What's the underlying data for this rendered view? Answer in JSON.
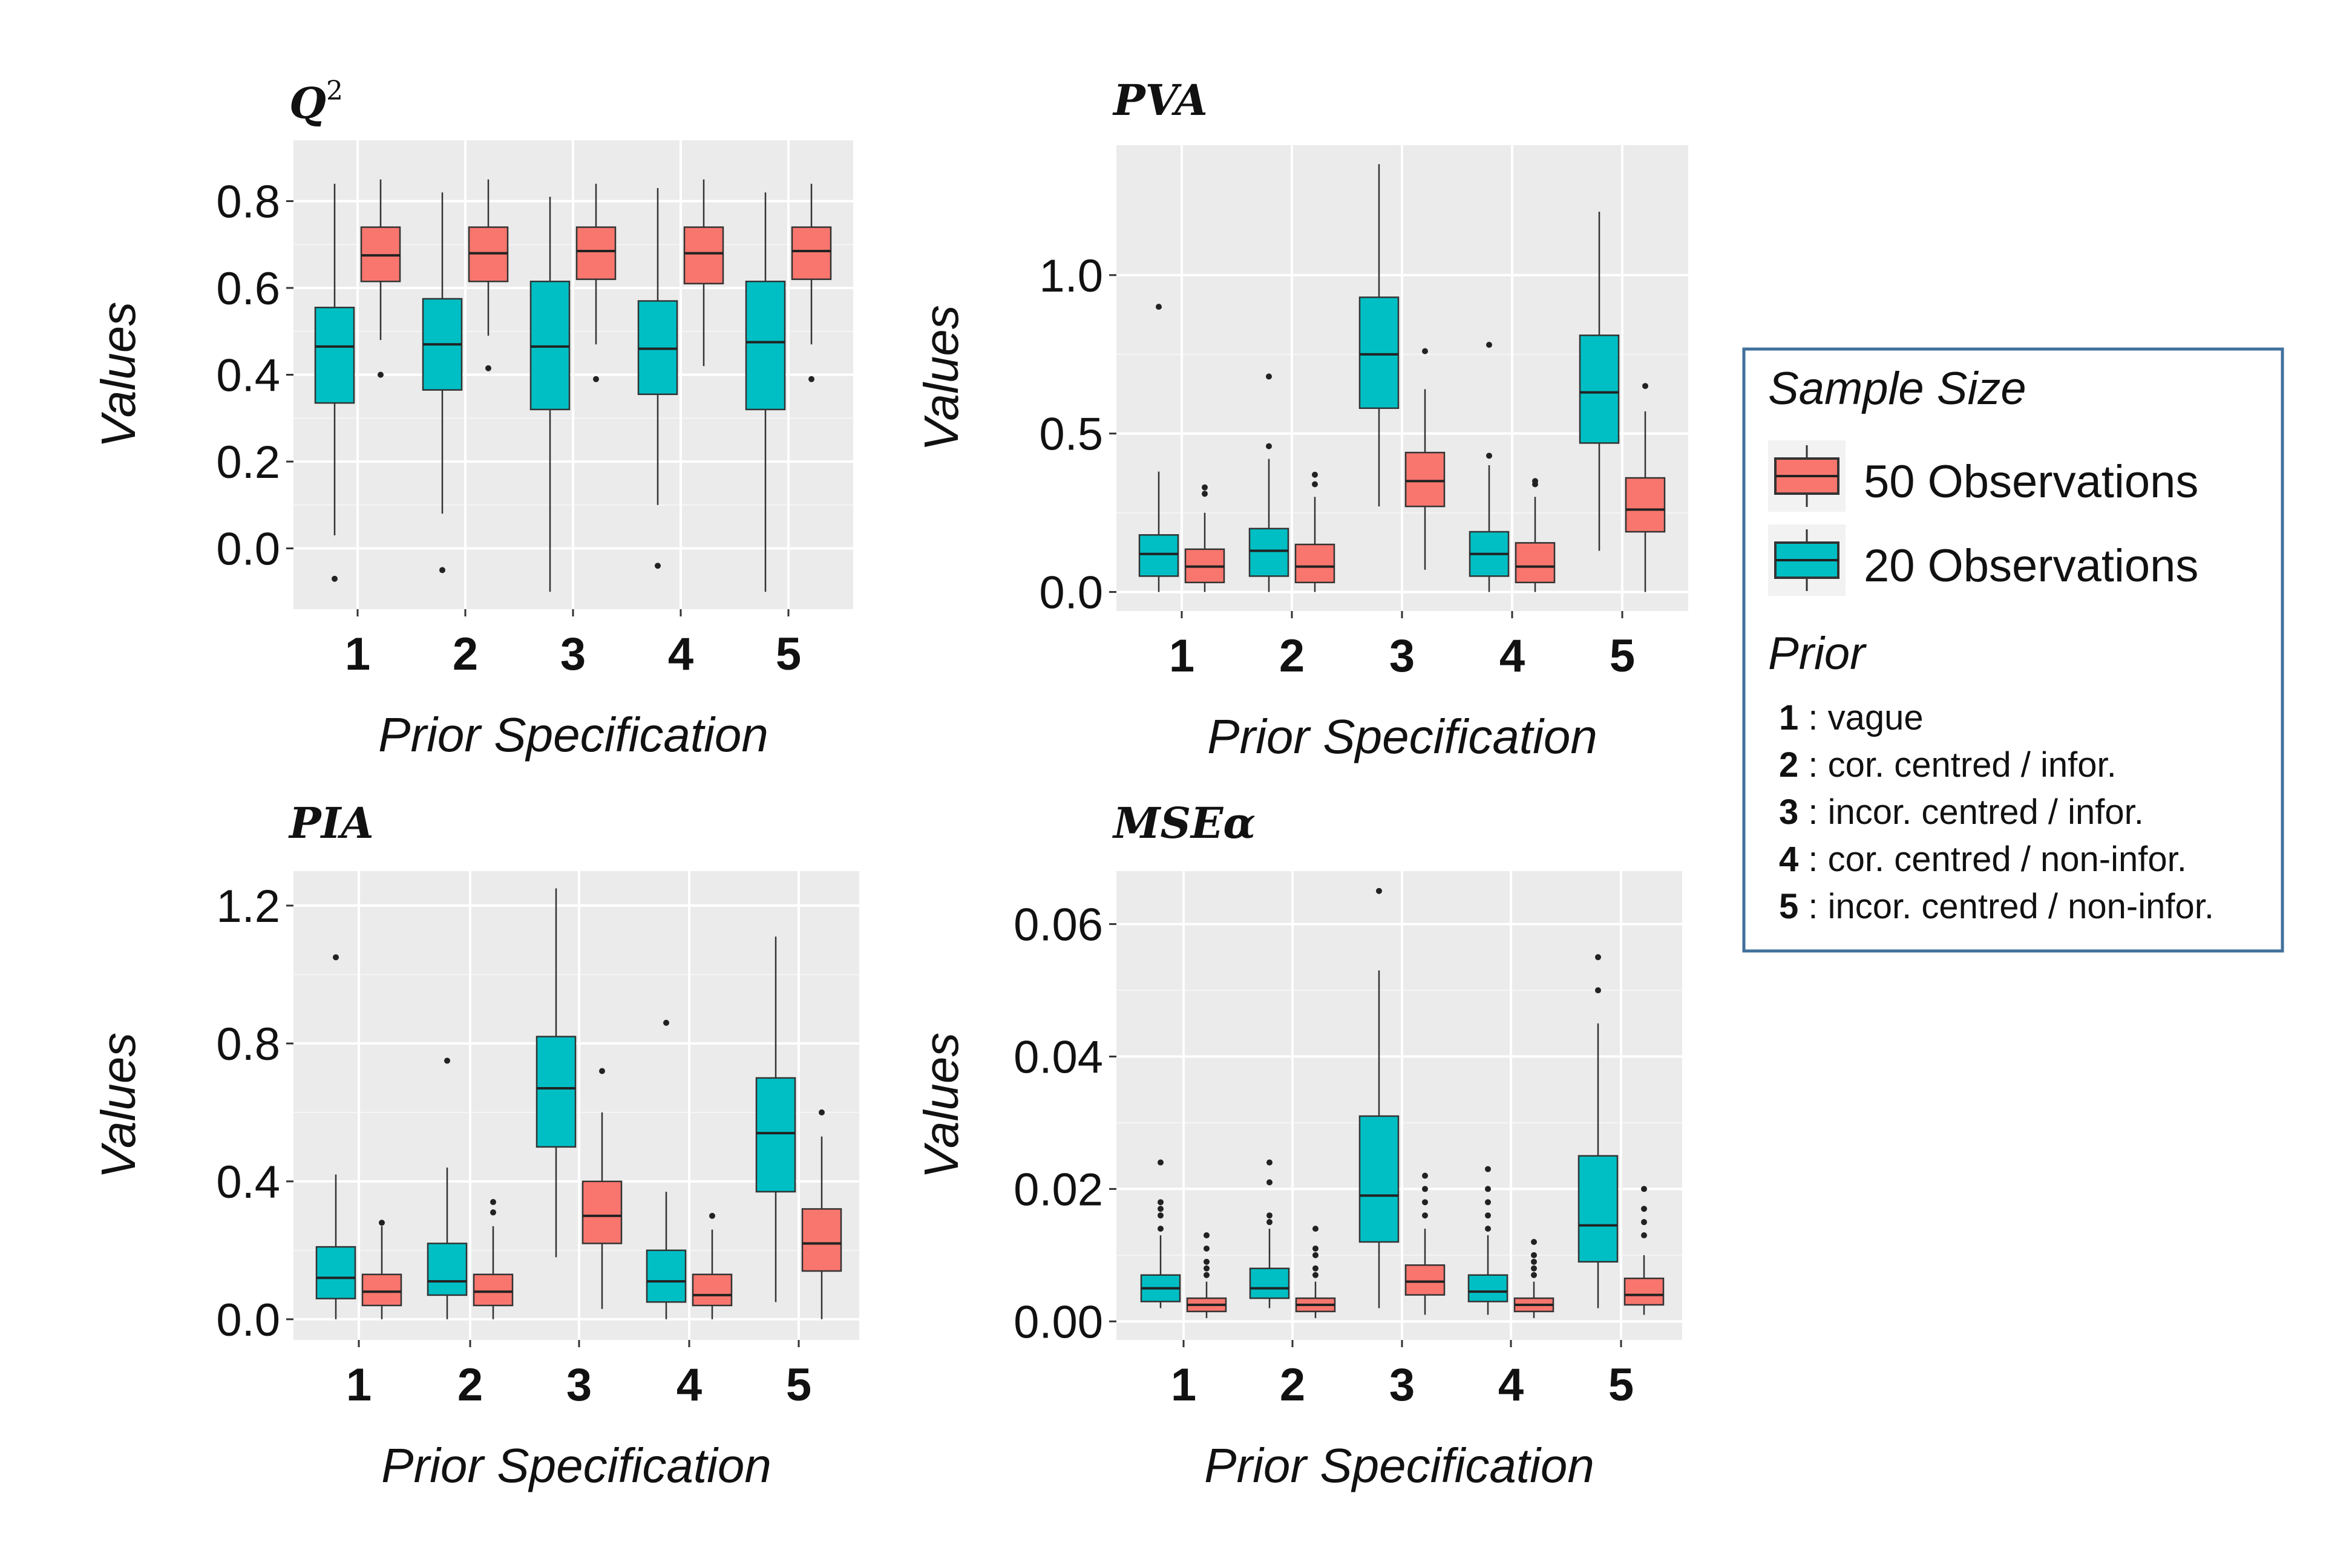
{
  "chart_data": [
    {
      "type": "box",
      "title": "Q",
      "title_superscript": "2",
      "xlabel": "Prior Specification",
      "ylabel": "Values",
      "categories": [
        "1",
        "2",
        "3",
        "4",
        "5"
      ],
      "ylim": [
        -0.14,
        0.94
      ],
      "yticks": [
        0.0,
        0.2,
        0.4,
        0.6,
        0.8
      ],
      "ytick_labels": [
        "0.0",
        "0.2",
        "0.4",
        "0.6",
        "0.8"
      ],
      "series": [
        {
          "name": "20 Observations",
          "boxes": [
            {
              "min": 0.03,
              "q1": 0.335,
              "median": 0.465,
              "q3": 0.555,
              "max": 0.84,
              "outliers": [
                -0.07
              ]
            },
            {
              "min": 0.08,
              "q1": 0.365,
              "median": 0.47,
              "q3": 0.575,
              "max": 0.82,
              "outliers": [
                -0.05
              ]
            },
            {
              "min": -0.1,
              "q1": 0.32,
              "median": 0.465,
              "q3": 0.615,
              "max": 0.81,
              "outliers": []
            },
            {
              "min": 0.1,
              "q1": 0.355,
              "median": 0.46,
              "q3": 0.57,
              "max": 0.83,
              "outliers": [
                -0.04
              ]
            },
            {
              "min": -0.1,
              "q1": 0.32,
              "median": 0.475,
              "q3": 0.615,
              "max": 0.82,
              "outliers": []
            }
          ]
        },
        {
          "name": "50 Observations",
          "boxes": [
            {
              "min": 0.48,
              "q1": 0.615,
              "median": 0.675,
              "q3": 0.74,
              "max": 0.85,
              "outliers": [
                0.4
              ]
            },
            {
              "min": 0.49,
              "q1": 0.615,
              "median": 0.68,
              "q3": 0.74,
              "max": 0.85,
              "outliers": [
                0.415
              ]
            },
            {
              "min": 0.47,
              "q1": 0.62,
              "median": 0.685,
              "q3": 0.74,
              "max": 0.84,
              "outliers": [
                0.39
              ]
            },
            {
              "min": 0.42,
              "q1": 0.61,
              "median": 0.68,
              "q3": 0.74,
              "max": 0.85,
              "outliers": []
            },
            {
              "min": 0.47,
              "q1": 0.62,
              "median": 0.685,
              "q3": 0.74,
              "max": 0.84,
              "outliers": [
                0.39
              ]
            }
          ]
        }
      ]
    },
    {
      "type": "box",
      "title": "PVA",
      "xlabel": "Prior Specification",
      "ylabel": "Values",
      "categories": [
        "1",
        "2",
        "3",
        "4",
        "5"
      ],
      "ylim": [
        -0.06,
        1.41
      ],
      "yticks": [
        0.0,
        0.5,
        1.0
      ],
      "ytick_labels": [
        "0.0",
        "0.5",
        "1.0"
      ],
      "series": [
        {
          "name": "20 Observations",
          "boxes": [
            {
              "min": 0.0,
              "q1": 0.05,
              "median": 0.12,
              "q3": 0.18,
              "max": 0.38,
              "outliers": [
                0.9
              ]
            },
            {
              "min": 0.0,
              "q1": 0.05,
              "median": 0.13,
              "q3": 0.2,
              "max": 0.42,
              "outliers": [
                0.46,
                0.68
              ]
            },
            {
              "min": 0.27,
              "q1": 0.58,
              "median": 0.75,
              "q3": 0.93,
              "max": 1.35,
              "outliers": []
            },
            {
              "min": 0.0,
              "q1": 0.05,
              "median": 0.12,
              "q3": 0.19,
              "max": 0.4,
              "outliers": [
                0.43,
                0.78
              ]
            },
            {
              "min": 0.13,
              "q1": 0.47,
              "median": 0.63,
              "q3": 0.81,
              "max": 1.2,
              "outliers": []
            }
          ]
        },
        {
          "name": "50 Observations",
          "boxes": [
            {
              "min": 0.0,
              "q1": 0.03,
              "median": 0.08,
              "q3": 0.135,
              "max": 0.25,
              "outliers": [
                0.31,
                0.33
              ]
            },
            {
              "min": 0.0,
              "q1": 0.03,
              "median": 0.08,
              "q3": 0.15,
              "max": 0.3,
              "outliers": [
                0.34,
                0.37
              ]
            },
            {
              "min": 0.07,
              "q1": 0.27,
              "median": 0.35,
              "q3": 0.44,
              "max": 0.64,
              "outliers": [
                0.76
              ]
            },
            {
              "min": 0.0,
              "q1": 0.03,
              "median": 0.08,
              "q3": 0.155,
              "max": 0.3,
              "outliers": [
                0.34,
                0.35
              ]
            },
            {
              "min": 0.0,
              "q1": 0.19,
              "median": 0.26,
              "q3": 0.36,
              "max": 0.57,
              "outliers": [
                0.65
              ]
            }
          ]
        }
      ]
    },
    {
      "type": "box",
      "title": "PIA",
      "xlabel": "Prior Specification",
      "ylabel": "Values",
      "categories": [
        "1",
        "2",
        "3",
        "4",
        "5"
      ],
      "ylim": [
        -0.06,
        1.3
      ],
      "yticks": [
        0.0,
        0.4,
        0.8,
        1.2
      ],
      "ytick_labels": [
        "0.0",
        "0.4",
        "0.8",
        "1.2"
      ],
      "series": [
        {
          "name": "20 Observations",
          "boxes": [
            {
              "min": 0.0,
              "q1": 0.06,
              "median": 0.12,
              "q3": 0.21,
              "max": 0.42,
              "outliers": [
                1.05
              ]
            },
            {
              "min": 0.0,
              "q1": 0.07,
              "median": 0.11,
              "q3": 0.22,
              "max": 0.44,
              "outliers": [
                0.75
              ]
            },
            {
              "min": 0.18,
              "q1": 0.5,
              "median": 0.67,
              "q3": 0.82,
              "max": 1.25,
              "outliers": []
            },
            {
              "min": 0.0,
              "q1": 0.05,
              "median": 0.11,
              "q3": 0.2,
              "max": 0.37,
              "outliers": [
                0.86
              ]
            },
            {
              "min": 0.05,
              "q1": 0.37,
              "median": 0.54,
              "q3": 0.7,
              "max": 1.11,
              "outliers": []
            }
          ]
        },
        {
          "name": "50 Observations",
          "boxes": [
            {
              "min": 0.0,
              "q1": 0.04,
              "median": 0.08,
              "q3": 0.13,
              "max": 0.27,
              "outliers": [
                0.28
              ]
            },
            {
              "min": 0.0,
              "q1": 0.04,
              "median": 0.08,
              "q3": 0.13,
              "max": 0.27,
              "outliers": [
                0.31,
                0.34
              ]
            },
            {
              "min": 0.03,
              "q1": 0.22,
              "median": 0.3,
              "q3": 0.4,
              "max": 0.6,
              "outliers": [
                0.72
              ]
            },
            {
              "min": 0.0,
              "q1": 0.04,
              "median": 0.07,
              "q3": 0.13,
              "max": 0.26,
              "outliers": [
                0.3
              ]
            },
            {
              "min": 0.0,
              "q1": 0.14,
              "median": 0.22,
              "q3": 0.32,
              "max": 0.53,
              "outliers": [
                0.6
              ]
            }
          ]
        }
      ]
    },
    {
      "type": "box",
      "title": "MSEα",
      "xlabel": "Prior Specification",
      "ylabel": "Values",
      "categories": [
        "1",
        "2",
        "3",
        "4",
        "5"
      ],
      "ylim": [
        -0.0028,
        0.068
      ],
      "yticks": [
        0.0,
        0.02,
        0.04,
        0.06
      ],
      "ytick_labels": [
        "0.00",
        "0.02",
        "0.04",
        "0.06"
      ],
      "series": [
        {
          "name": "20 Observations",
          "boxes": [
            {
              "min": 0.002,
              "q1": 0.003,
              "median": 0.005,
              "q3": 0.007,
              "max": 0.013,
              "outliers": [
                0.014,
                0.016,
                0.017,
                0.018,
                0.024
              ]
            },
            {
              "min": 0.002,
              "q1": 0.0035,
              "median": 0.005,
              "q3": 0.008,
              "max": 0.014,
              "outliers": [
                0.015,
                0.016,
                0.021,
                0.024
              ]
            },
            {
              "min": 0.002,
              "q1": 0.012,
              "median": 0.019,
              "q3": 0.031,
              "max": 0.053,
              "outliers": [
                0.065
              ]
            },
            {
              "min": 0.001,
              "q1": 0.003,
              "median": 0.0045,
              "q3": 0.007,
              "max": 0.013,
              "outliers": [
                0.014,
                0.016,
                0.018,
                0.02,
                0.023
              ]
            },
            {
              "min": 0.002,
              "q1": 0.009,
              "median": 0.0145,
              "q3": 0.025,
              "max": 0.045,
              "outliers": [
                0.05,
                0.055
              ]
            }
          ]
        },
        {
          "name": "50 Observations",
          "boxes": [
            {
              "min": 0.0005,
              "q1": 0.0015,
              "median": 0.0025,
              "q3": 0.0035,
              "max": 0.006,
              "outliers": [
                0.007,
                0.008,
                0.009,
                0.011,
                0.013
              ]
            },
            {
              "min": 0.0005,
              "q1": 0.0015,
              "median": 0.0025,
              "q3": 0.0035,
              "max": 0.006,
              "outliers": [
                0.007,
                0.008,
                0.01,
                0.011,
                0.014
              ]
            },
            {
              "min": 0.001,
              "q1": 0.004,
              "median": 0.006,
              "q3": 0.0085,
              "max": 0.014,
              "outliers": [
                0.016,
                0.018,
                0.02,
                0.022
              ]
            },
            {
              "min": 0.0005,
              "q1": 0.0015,
              "median": 0.0025,
              "q3": 0.0035,
              "max": 0.006,
              "outliers": [
                0.007,
                0.008,
                0.009,
                0.01,
                0.012
              ]
            },
            {
              "min": 0.001,
              "q1": 0.0025,
              "median": 0.004,
              "q3": 0.0065,
              "max": 0.01,
              "outliers": [
                0.013,
                0.015,
                0.017,
                0.02
              ]
            }
          ]
        }
      ]
    }
  ],
  "legend": {
    "title": "Sample Size",
    "items": [
      {
        "label": "50 Observations",
        "color": "#F8766D"
      },
      {
        "label": "20 Observations",
        "color": "#00BFC4"
      }
    ],
    "prior_title": "Prior",
    "prior_items": [
      {
        "num": "1",
        "text": " : vague"
      },
      {
        "num": "2",
        "text": " : cor. centred / infor."
      },
      {
        "num": "3",
        "text": " : incor. centred / infor."
      },
      {
        "num": "4",
        "text": " : cor. centred / non-infor."
      },
      {
        "num": "5",
        "text": " : incor. centred / non-infor."
      }
    ]
  },
  "colors": {
    "s20": "#00BFC4",
    "s50": "#F8766D",
    "panel": "#EBEBEB",
    "grid_major": "#FFFFFF",
    "legend_border": "#41719C"
  }
}
